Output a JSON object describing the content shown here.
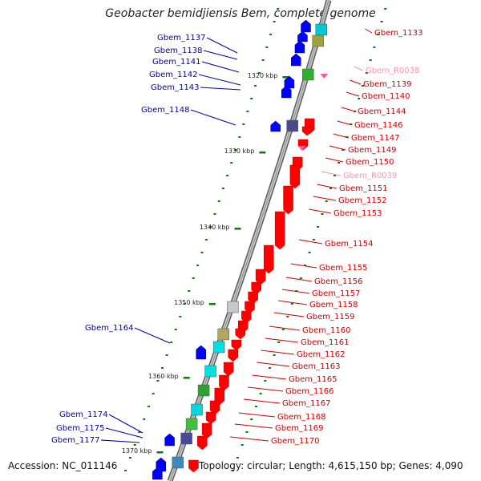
{
  "title": "Geobacter bemidjiensis Bem, complete genome",
  "footer": {
    "accession": "Accession: NC_011146",
    "topology": "Topology: circular; Length: 4,615,150 bp; Genes: 4,090"
  },
  "colors": {
    "backbone": "#8a8a8a",
    "forward_strand": "#ff0000",
    "reverse_strand": "#0000ff",
    "forward_label": "#cc0000",
    "reverse_label": "#0000aa",
    "rna_label": "#ff8fb8",
    "tick": "#0a7a0a"
  },
  "scale_ticks": [
    "1320 kbp",
    "1330 kbp",
    "1340 kbp",
    "1350 kbp",
    "1360 kbp",
    "1370 kbp"
  ],
  "left_labels": [
    "Gbem_1137",
    "Gbem_1138",
    "Gbem_1141",
    "Gbem_1142",
    "Gbem_1143",
    "Gbem_1148",
    "Gbem_1164",
    "Gbem_1174",
    "Gbem_1175",
    "Gbem_1177"
  ],
  "right_labels": [
    {
      "text": "Gbem_1133",
      "kind": "gene"
    },
    {
      "text": "Gbem_R0038",
      "kind": "rna"
    },
    {
      "text": "Gbem_1139",
      "kind": "gene"
    },
    {
      "text": "Gbem_1140",
      "kind": "gene"
    },
    {
      "text": "Gbem_1144",
      "kind": "gene"
    },
    {
      "text": "Gbem_1146",
      "kind": "gene"
    },
    {
      "text": "Gbem_1147",
      "kind": "gene"
    },
    {
      "text": "Gbem_1149",
      "kind": "gene"
    },
    {
      "text": "Gbem_1150",
      "kind": "gene"
    },
    {
      "text": "Gbem_R0039",
      "kind": "rna"
    },
    {
      "text": "Gbem_1151",
      "kind": "gene"
    },
    {
      "text": "Gbem_1152",
      "kind": "gene"
    },
    {
      "text": "Gbem_1153",
      "kind": "gene"
    },
    {
      "text": "Gbem_1154",
      "kind": "gene"
    },
    {
      "text": "Gbem_1155",
      "kind": "gene"
    },
    {
      "text": "Gbem_1156",
      "kind": "gene"
    },
    {
      "text": "Gbem_1157",
      "kind": "gene"
    },
    {
      "text": "Gbem_1158",
      "kind": "gene"
    },
    {
      "text": "Gbem_1159",
      "kind": "gene"
    },
    {
      "text": "Gbem_1160",
      "kind": "gene"
    },
    {
      "text": "Gbem_1161",
      "kind": "gene"
    },
    {
      "text": "Gbem_1162",
      "kind": "gene"
    },
    {
      "text": "Gbem_1163",
      "kind": "gene"
    },
    {
      "text": "Gbem_1165",
      "kind": "gene"
    },
    {
      "text": "Gbem_1166",
      "kind": "gene"
    },
    {
      "text": "Gbem_1167",
      "kind": "gene"
    },
    {
      "text": "Gbem_1168",
      "kind": "gene"
    },
    {
      "text": "Gbem_1169",
      "kind": "gene"
    },
    {
      "text": "Gbem_1170",
      "kind": "gene"
    }
  ]
}
